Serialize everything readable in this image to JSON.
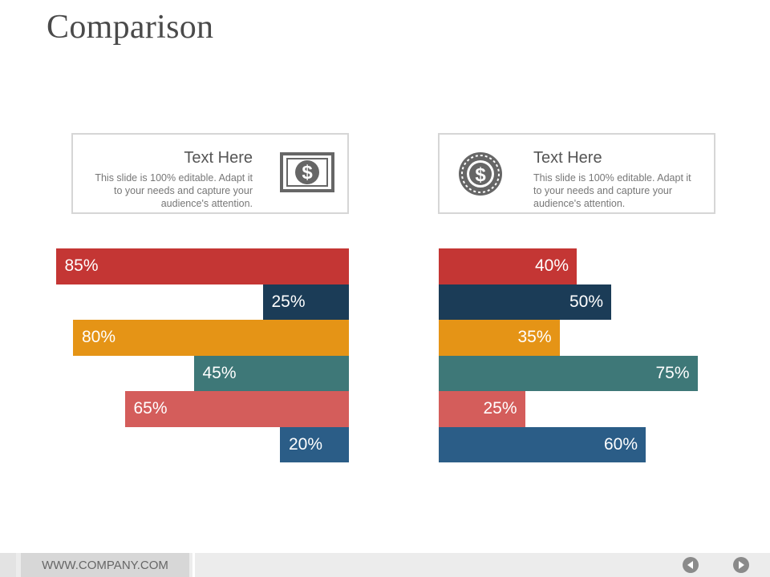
{
  "slide": {
    "title": "Comparison"
  },
  "cards": [
    {
      "heading": "Text Here",
      "body": "This slide is 100% editable. Adapt it to your needs and capture your audience's attention.",
      "icon": "dollar-bill-icon"
    },
    {
      "heading": "Text Here",
      "body": "This slide is 100% editable. Adapt it to your needs and capture your audience's attention.",
      "icon": "dollar-coin-icon"
    }
  ],
  "colors": [
    "#c43634",
    "#1b3c57",
    "#e59416",
    "#3e7878",
    "#d45d5b",
    "#2b5d87"
  ],
  "chart_data": [
    {
      "type": "bar",
      "orientation": "horizontal",
      "direction": "right-to-left",
      "values": [
        85,
        25,
        80,
        45,
        65,
        20
      ],
      "labels": [
        "85%",
        "25%",
        "80%",
        "45%",
        "65%",
        "20%"
      ]
    },
    {
      "type": "bar",
      "orientation": "horizontal",
      "direction": "left-to-right",
      "values": [
        40,
        50,
        35,
        75,
        25,
        60
      ],
      "labels": [
        "40%",
        "50%",
        "35%",
        "75%",
        "25%",
        "60%"
      ]
    }
  ],
  "footer": {
    "url": "WWW.COMPANY.COM",
    "prev_icon": "prev-arrow-icon",
    "next_icon": "next-arrow-icon"
  }
}
